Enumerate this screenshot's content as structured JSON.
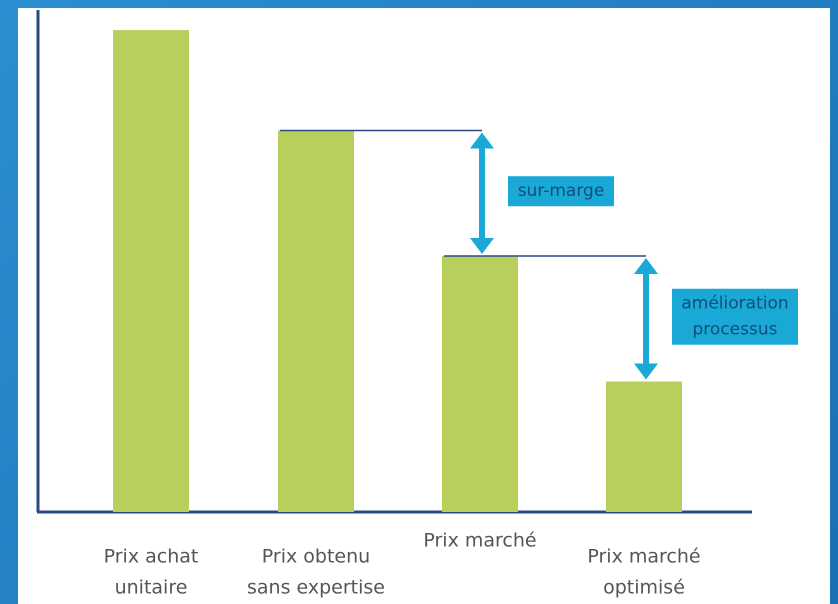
{
  "chart_data": {
    "type": "bar",
    "categories": [
      [
        "Prix achat",
        "unitaire"
      ],
      [
        "Prix obtenu",
        "sans expertise"
      ],
      [
        "Prix marché"
      ],
      [
        "Prix marché",
        "optimisé"
      ]
    ],
    "values": [
      96,
      76,
      51,
      26
    ],
    "color": "#b8cf5c",
    "ylim": [
      0,
      100
    ],
    "annotations": [
      {
        "text": [
          "sur-marge"
        ],
        "from": 1,
        "to": 2
      },
      {
        "text": [
          "amélioration",
          "processus"
        ],
        "from": 2,
        "to": 3
      }
    ],
    "annotation_color": "#1aa9d6"
  }
}
